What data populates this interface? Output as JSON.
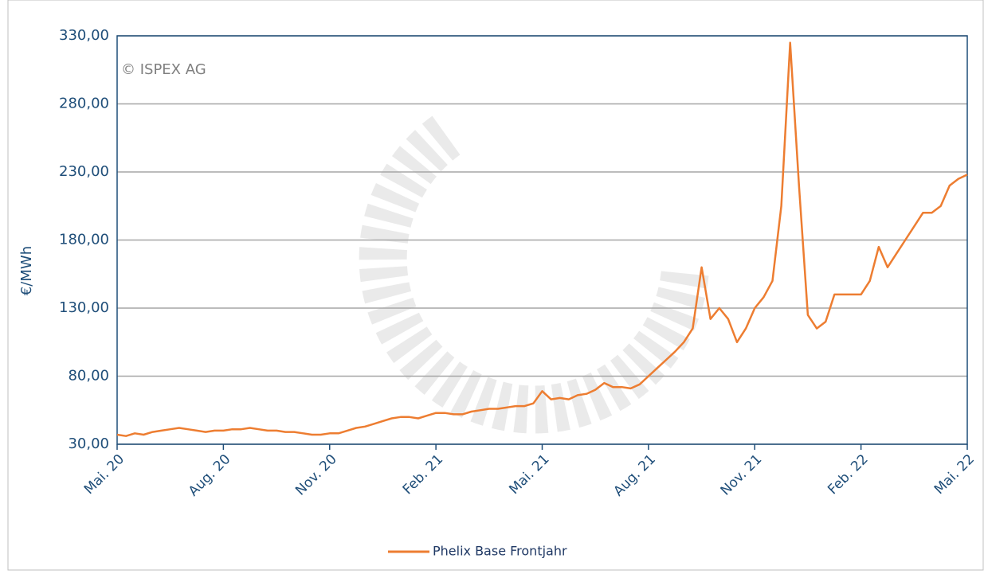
{
  "chart_data": {
    "type": "line",
    "y_label": "€/MWh",
    "annotation": "© ISPEX AG",
    "legend": "bottom",
    "grid": true,
    "categories": [
      "Mai. 20",
      null,
      null,
      null,
      null,
      null,
      null,
      null,
      null,
      null,
      null,
      null,
      "Aug. 20",
      null,
      null,
      null,
      null,
      null,
      null,
      null,
      null,
      null,
      null,
      null,
      "Nov. 20",
      null,
      null,
      null,
      null,
      null,
      null,
      null,
      null,
      null,
      null,
      null,
      "Feb. 21",
      null,
      null,
      null,
      null,
      null,
      null,
      null,
      null,
      null,
      null,
      null,
      "Mai. 21",
      null,
      null,
      null,
      null,
      null,
      null,
      null,
      null,
      null,
      null,
      null,
      "Aug. 21",
      null,
      null,
      null,
      null,
      null,
      null,
      null,
      null,
      null,
      null,
      null,
      "Nov. 21",
      null,
      null,
      null,
      null,
      null,
      null,
      null,
      null,
      null,
      null,
      null,
      "Feb. 22",
      null,
      null,
      null,
      null,
      null,
      null,
      null,
      null,
      null,
      null,
      null,
      "Mai. 22"
    ],
    "series": [
      {
        "name": "Phelix Base Frontjahr",
        "color": "#ed7d31",
        "values": [
          37,
          36,
          38,
          37,
          39,
          40,
          41,
          42,
          41,
          40,
          39,
          40,
          40,
          41,
          41,
          42,
          41,
          40,
          40,
          39,
          39,
          38,
          37,
          37,
          38,
          38,
          40,
          42,
          43,
          45,
          47,
          49,
          50,
          50,
          49,
          51,
          53,
          53,
          52,
          52,
          54,
          55,
          56,
          56,
          57,
          58,
          58,
          60,
          69,
          63,
          64,
          63,
          66,
          67,
          70,
          75,
          72,
          72,
          71,
          74,
          80,
          86,
          92,
          98,
          105,
          115,
          160,
          122,
          130,
          122,
          105,
          115,
          130,
          138,
          150,
          205,
          325,
          220,
          125,
          115,
          120,
          140,
          140,
          140,
          140,
          150,
          175,
          160,
          170,
          180,
          190,
          200,
          200,
          205,
          220,
          225,
          228
        ]
      }
    ],
    "ylim": [
      30,
      330
    ],
    "yticks": [
      {
        "value": 30,
        "label": "30,00"
      },
      {
        "value": 80,
        "label": "80,00"
      },
      {
        "value": 130,
        "label": "130,00"
      },
      {
        "value": 180,
        "label": "180,00"
      },
      {
        "value": 230,
        "label": "230,00"
      },
      {
        "value": 280,
        "label": "280,00"
      },
      {
        "value": 330,
        "label": "330,00"
      }
    ]
  }
}
